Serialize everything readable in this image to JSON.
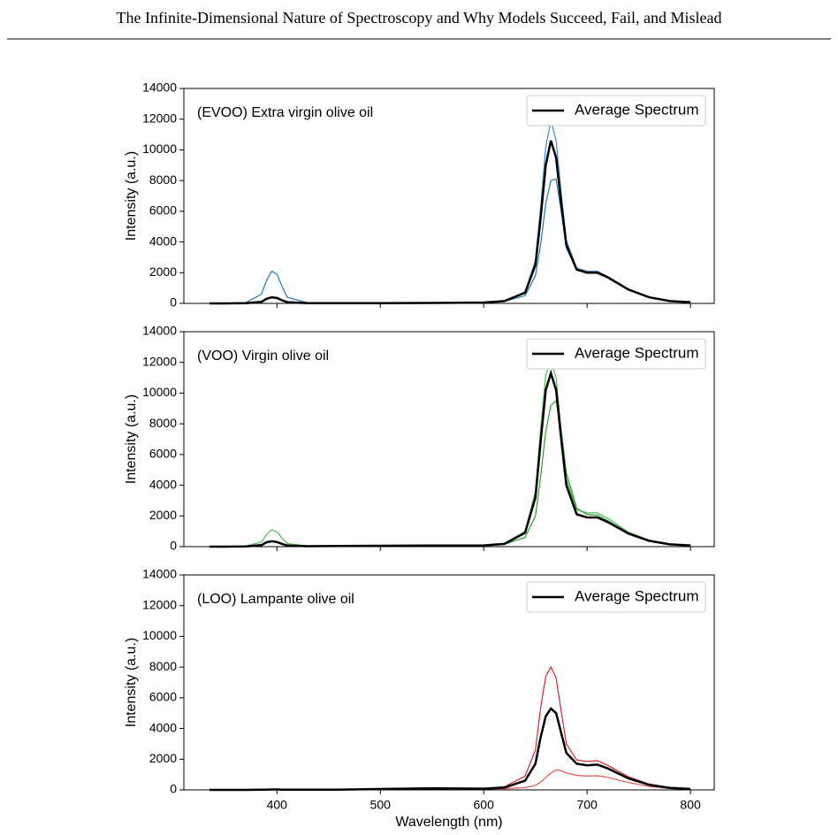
{
  "header": {
    "title": "The Infinite-Dimensional Nature of Spectroscopy and Why Models Succeed, Fail, and Mislead"
  },
  "chart_data": [
    {
      "type": "line",
      "annotation": "(EVOO) Extra virgin olive oil",
      "ylabel": "Intensity (a.u.)",
      "x": [
        335,
        350,
        370,
        385,
        390,
        395,
        400,
        405,
        410,
        430,
        460,
        500,
        550,
        600,
        620,
        640,
        650,
        655,
        660,
        665,
        670,
        675,
        680,
        690,
        700,
        710,
        720,
        740,
        760,
        780,
        800
      ],
      "series": [
        {
          "color": "#3a8ac9",
          "values": [
            0,
            0,
            10,
            100,
            300,
            420,
            380,
            220,
            80,
            20,
            10,
            20,
            30,
            60,
            150,
            750,
            2800,
            6200,
            10200,
            11900,
            10600,
            7200,
            4100,
            2300,
            2100,
            2100,
            1750,
            950,
            420,
            160,
            80
          ]
        },
        {
          "color": "#1f77b4",
          "values": [
            0,
            0,
            50,
            600,
            1500,
            2100,
            1900,
            1100,
            400,
            30,
            10,
            20,
            30,
            60,
            130,
            500,
            1800,
            3800,
            6500,
            8000,
            8100,
            6000,
            3600,
            2200,
            2000,
            2050,
            1700,
            900,
            400,
            150,
            80
          ]
        },
        {
          "name": "Average Spectrum",
          "color": "#000000",
          "values": [
            0,
            0,
            10,
            100,
            300,
            400,
            350,
            200,
            80,
            20,
            10,
            20,
            30,
            60,
            150,
            700,
            2500,
            5500,
            9000,
            10600,
            9500,
            6500,
            3800,
            2200,
            2000,
            2000,
            1700,
            900,
            400,
            150,
            80
          ]
        }
      ],
      "xlim": [
        310,
        823
      ],
      "ylim": [
        0,
        14000
      ],
      "xticks": [
        400,
        500,
        600,
        700,
        800
      ],
      "yticks": [
        0,
        2000,
        4000,
        6000,
        8000,
        10000,
        12000,
        14000
      ],
      "legend": "upper right"
    },
    {
      "type": "line",
      "annotation": "(VOO) Virgin olive oil",
      "ylabel": "Intensity (a.u.)",
      "x": [
        335,
        350,
        370,
        385,
        390,
        395,
        400,
        405,
        410,
        430,
        460,
        500,
        550,
        600,
        620,
        640,
        650,
        655,
        660,
        665,
        670,
        675,
        680,
        690,
        700,
        710,
        720,
        740,
        760,
        780,
        800
      ],
      "series": [
        {
          "color": "#4cb84c",
          "values": [
            0,
            0,
            30,
            300,
            800,
            1100,
            950,
            550,
            200,
            40,
            40,
            60,
            70,
            80,
            200,
            1000,
            3600,
            7600,
            11200,
            12100,
            11000,
            7600,
            4400,
            2400,
            2200,
            2200,
            1850,
            950,
            420,
            160,
            80
          ]
        },
        {
          "color": "#2ca02c",
          "values": [
            0,
            0,
            10,
            100,
            250,
            320,
            280,
            160,
            60,
            30,
            40,
            60,
            70,
            80,
            150,
            600,
            2000,
            4500,
            7500,
            9200,
            9500,
            7600,
            4800,
            2500,
            2100,
            2050,
            1700,
            900,
            400,
            150,
            80
          ]
        },
        {
          "name": "Average Spectrum",
          "color": "#000000",
          "values": [
            0,
            0,
            10,
            100,
            280,
            350,
            300,
            180,
            70,
            30,
            40,
            60,
            70,
            80,
            180,
            900,
            3200,
            6800,
            10200,
            11300,
            10200,
            7000,
            4000,
            2100,
            1900,
            1900,
            1600,
            850,
            380,
            150,
            80
          ]
        }
      ],
      "xlim": [
        310,
        823
      ],
      "ylim": [
        0,
        14000
      ],
      "xticks": [
        400,
        500,
        600,
        700,
        800
      ],
      "yticks": [
        0,
        2000,
        4000,
        6000,
        8000,
        10000,
        12000,
        14000
      ],
      "legend": "upper right"
    },
    {
      "type": "line",
      "annotation": "(LOO) Lampante olive oil",
      "ylabel": "Intensity (a.u.)",
      "xlabel": "Wavelength (nm)",
      "x": [
        335,
        350,
        370,
        385,
        390,
        395,
        400,
        405,
        410,
        430,
        460,
        500,
        550,
        600,
        620,
        640,
        650,
        655,
        660,
        665,
        670,
        675,
        680,
        690,
        700,
        710,
        720,
        740,
        760,
        780,
        800
      ],
      "series": [
        {
          "color": "#d62728",
          "values": [
            0,
            0,
            0,
            10,
            20,
            30,
            30,
            20,
            10,
            10,
            20,
            80,
            130,
            100,
            200,
            900,
            2600,
            5300,
            7400,
            8000,
            7300,
            5100,
            3000,
            1950,
            1850,
            1900,
            1600,
            850,
            380,
            150,
            70
          ]
        },
        {
          "color": "#e05555",
          "values": [
            0,
            0,
            0,
            10,
            20,
            30,
            30,
            20,
            10,
            10,
            20,
            60,
            90,
            70,
            80,
            150,
            300,
            500,
            800,
            1100,
            1300,
            1250,
            1100,
            950,
            900,
            920,
            820,
            480,
            220,
            90,
            50
          ]
        },
        {
          "name": "Average Spectrum",
          "color": "#000000",
          "values": [
            0,
            0,
            0,
            10,
            20,
            30,
            30,
            20,
            10,
            10,
            20,
            60,
            100,
            80,
            150,
            600,
            1700,
            3400,
            4800,
            5300,
            5000,
            3700,
            2400,
            1700,
            1600,
            1650,
            1400,
            750,
            330,
            130,
            60
          ]
        }
      ],
      "xlim": [
        310,
        823
      ],
      "ylim": [
        0,
        14000
      ],
      "xticks": [
        400,
        500,
        600,
        700,
        800
      ],
      "yticks": [
        0,
        2000,
        4000,
        6000,
        8000,
        10000,
        12000,
        14000
      ],
      "legend": "upper right"
    }
  ]
}
